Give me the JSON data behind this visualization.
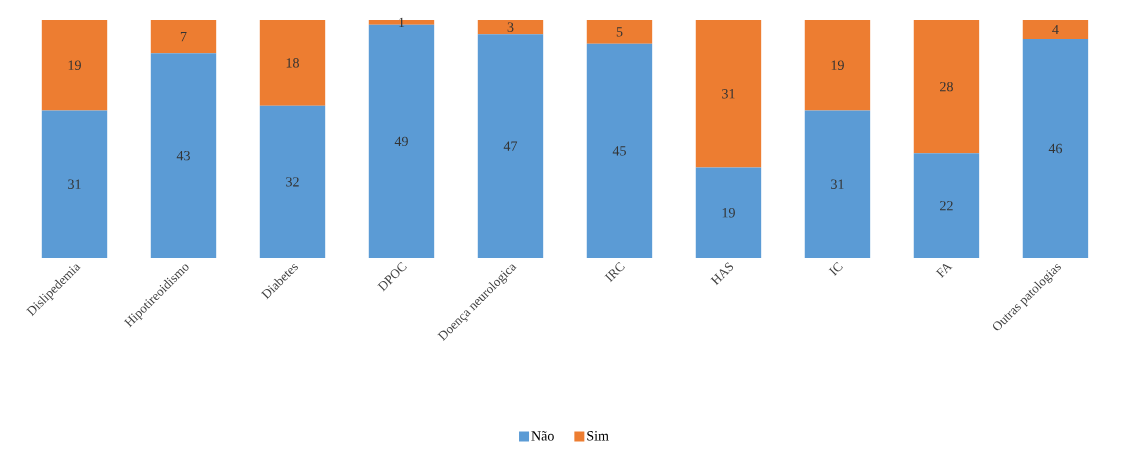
{
  "chart_data": {
    "type": "bar",
    "stacked": true,
    "data_labels": true,
    "legend": "bottom",
    "categories": [
      "Dislipedemia",
      "Hipotireoidismo",
      "Diabetes",
      "DPOC",
      "Doença neurologica",
      "IRC",
      "HAS",
      "IC",
      "FA",
      "Outras patologias"
    ],
    "series": [
      {
        "name": "Não",
        "color": "#5b9bd5",
        "values": [
          31,
          43,
          32,
          49,
          47,
          45,
          19,
          31,
          22,
          46
        ]
      },
      {
        "name": "Sim",
        "color": "#ed7d31",
        "values": [
          19,
          7,
          18,
          1,
          3,
          5,
          31,
          19,
          28,
          4
        ]
      }
    ]
  }
}
